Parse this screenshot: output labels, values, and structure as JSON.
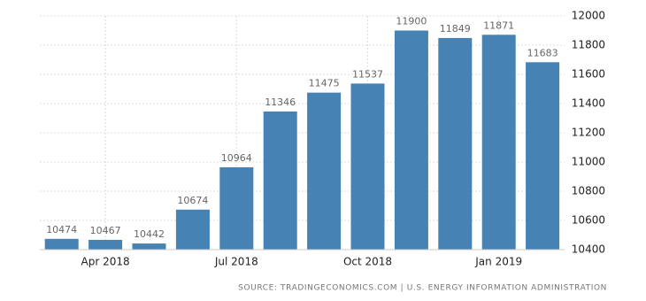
{
  "chart_data": {
    "type": "bar",
    "categories": [
      null,
      "Apr 2018",
      null,
      null,
      "Jul 2018",
      null,
      null,
      "Oct 2018",
      null,
      null,
      "Jan 2019",
      null
    ],
    "values": [
      10474,
      10467,
      10442,
      10674,
      10964,
      11346,
      11475,
      11537,
      11900,
      11849,
      11871,
      11683
    ],
    "color": "#4682b4",
    "ylim": [
      10400,
      12000
    ],
    "yticks": [
      10400,
      10600,
      10800,
      11000,
      11200,
      11400,
      11600,
      11800,
      12000
    ],
    "grid": true,
    "source": "SOURCE: TRADINGECONOMICS.COM | U.S. ENERGY INFORMATION ADMINISTRATION"
  }
}
